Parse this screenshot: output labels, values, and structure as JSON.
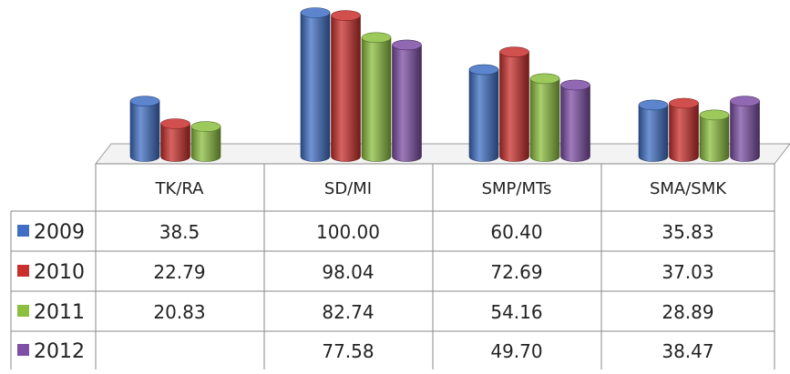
{
  "chart_data": {
    "type": "bar",
    "style": "3d-cylinder",
    "title": "",
    "xlabel": "",
    "ylabel": "",
    "ylim": [
      0,
      100
    ],
    "grid": false,
    "legend": "left, in data table",
    "categories": [
      "TK/RA",
      "SD/MI",
      "SMP/MTs",
      "SMA/SMK"
    ],
    "series": [
      {
        "name": "2009",
        "color": "#3F6FC4",
        "values": [
          38.5,
          100.0,
          60.4,
          35.83
        ],
        "labels": [
          "38.5",
          "100.00",
          "60.40",
          "35.83"
        ]
      },
      {
        "name": "2010",
        "color": "#C9302C",
        "values": [
          22.79,
          98.04,
          72.69,
          37.03
        ],
        "labels": [
          "22.79",
          "98.04",
          "72.69",
          "37.03"
        ]
      },
      {
        "name": "2011",
        "color": "#8CBF3F",
        "values": [
          20.83,
          82.74,
          54.16,
          28.89
        ],
        "labels": [
          "20.83",
          "82.74",
          "54.16",
          "28.89"
        ]
      },
      {
        "name": "2012",
        "color": "#7E4FA6",
        "values": [
          null,
          77.58,
          49.7,
          38.47
        ],
        "labels": [
          "",
          "77.58",
          "49.70",
          "38.47"
        ]
      }
    ]
  }
}
